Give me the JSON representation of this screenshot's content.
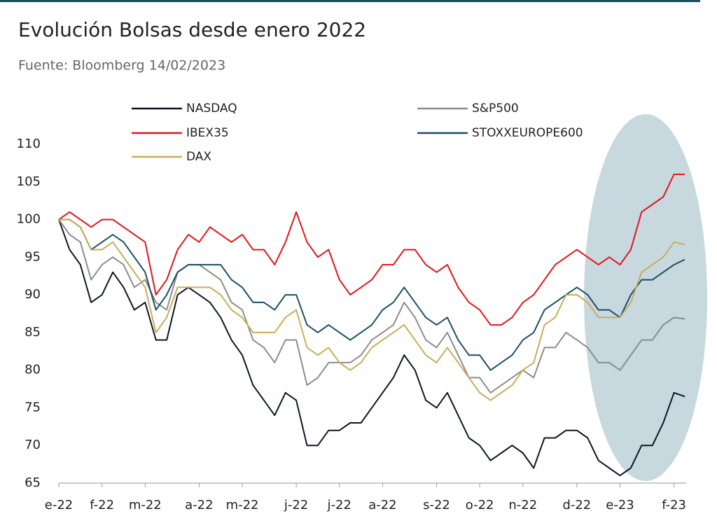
{
  "chart_data": {
    "type": "line",
    "title": "Evolución Bolsas desde enero 2022",
    "subtitle": "Fuente: Bloomberg 14/02/2023",
    "categories": [
      "e-22",
      null,
      null,
      null,
      "f-22",
      null,
      null,
      null,
      "m-22",
      null,
      null,
      null,
      null,
      "a-22",
      null,
      null,
      null,
      "m-22",
      null,
      null,
      null,
      null,
      "j-22",
      null,
      null,
      null,
      "j-22",
      null,
      null,
      null,
      "a-22",
      null,
      null,
      null,
      null,
      "s-22",
      null,
      null,
      null,
      "o-22",
      null,
      null,
      null,
      "n-22",
      null,
      null,
      null,
      null,
      "d-22",
      null,
      null,
      null,
      "e-23",
      null,
      null,
      null,
      null,
      "f-23",
      null
    ],
    "series": [
      {
        "name": "NASDAQ",
        "color": "#0d1526",
        "values": [
          100,
          96,
          94,
          89,
          90,
          93,
          91,
          88,
          89,
          84,
          84,
          90,
          91,
          90,
          89,
          87,
          84,
          82,
          78,
          76,
          74,
          77,
          76,
          70,
          70,
          72,
          72,
          73,
          73,
          75,
          77,
          79,
          82,
          80,
          76,
          75,
          77,
          74,
          71,
          70,
          68,
          69,
          70,
          69,
          67,
          71,
          71,
          72,
          72,
          71,
          68,
          67,
          66,
          67,
          70,
          70,
          73,
          77,
          76.5
        ]
      },
      {
        "name": "S&P500",
        "color": "#8c8c8c",
        "values": [
          100,
          98,
          97,
          92,
          94,
          95,
          94,
          91,
          92,
          89,
          88,
          93,
          94,
          94,
          93,
          92,
          89,
          88,
          84,
          83,
          81,
          84,
          84,
          78,
          79,
          81,
          81,
          81,
          82,
          84,
          85,
          86,
          89,
          87,
          84,
          83,
          85,
          82,
          79,
          79,
          77,
          78,
          79,
          80,
          79,
          83,
          83,
          85,
          84,
          83,
          81,
          81,
          80,
          82,
          84,
          84,
          86,
          87,
          86.8
        ]
      },
      {
        "name": "IBEX35",
        "color": "#e3141b",
        "values": [
          100,
          101,
          100,
          99,
          100,
          100,
          99,
          98,
          97,
          90,
          92,
          96,
          98,
          97,
          99,
          98,
          97,
          98,
          96,
          96,
          94,
          97,
          101,
          97,
          95,
          96,
          92,
          90,
          91,
          92,
          94,
          94,
          96,
          96,
          94,
          93,
          94,
          91,
          89,
          88,
          86,
          86,
          87,
          89,
          90,
          92,
          94,
          95,
          96,
          95,
          94,
          95,
          94,
          96,
          101,
          102,
          103,
          106,
          106
        ]
      },
      {
        "name": "STOXXEUROPE600",
        "color": "#1a4f66",
        "values": [
          100,
          100,
          99,
          96,
          97,
          98,
          97,
          95,
          93,
          88,
          90,
          93,
          94,
          94,
          94,
          94,
          92,
          91,
          89,
          89,
          88,
          90,
          90,
          86,
          85,
          86,
          85,
          84,
          85,
          86,
          88,
          89,
          91,
          89,
          87,
          86,
          87,
          84,
          82,
          82,
          80,
          81,
          82,
          84,
          85,
          88,
          89,
          90,
          91,
          90,
          88,
          88,
          87,
          90,
          92,
          92,
          93,
          94,
          94.7
        ]
      },
      {
        "name": "DAX",
        "color": "#c9ad5a",
        "values": [
          100,
          100,
          99,
          96,
          96,
          97,
          95,
          93,
          91,
          85,
          87,
          91,
          91,
          91,
          91,
          90,
          88,
          87,
          85,
          85,
          85,
          87,
          88,
          83,
          82,
          83,
          81,
          80,
          81,
          83,
          84,
          85,
          86,
          84,
          82,
          81,
          83,
          81,
          79,
          77,
          76,
          77,
          78,
          80,
          81,
          86,
          87,
          90,
          90,
          89,
          87,
          87,
          87,
          89,
          93,
          94,
          95,
          97,
          96.7
        ]
      }
    ],
    "ylim": [
      65,
      110
    ],
    "yticks": [
      65,
      70,
      75,
      80,
      85,
      90,
      95,
      100,
      105,
      110
    ]
  }
}
